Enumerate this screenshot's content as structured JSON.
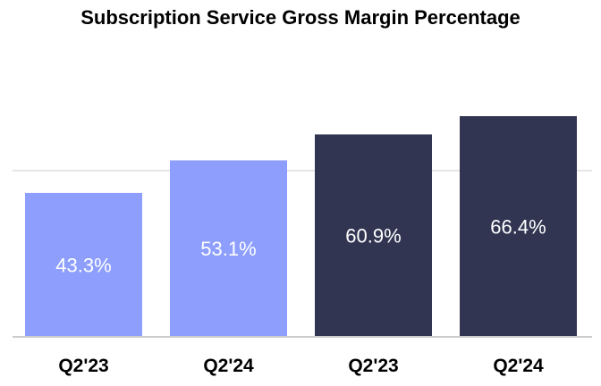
{
  "chart_data": {
    "type": "bar",
    "title": "Subscription Service Gross Margin Percentage",
    "xlabel": "",
    "ylabel": "",
    "categories": [
      "Q2'23",
      "Q2'24",
      "Q2'23",
      "Q2'24"
    ],
    "values": [
      43.3,
      53.1,
      60.9,
      66.4
    ],
    "value_labels": [
      "43.3%",
      "53.1%",
      "60.9%",
      "66.4%"
    ],
    "bar_colors": [
      "#8d9efc",
      "#8d9efc",
      "#323552",
      "#323552"
    ],
    "ylim": [
      0,
      70
    ],
    "grid": true,
    "legend": "none",
    "colors": {
      "gridline": "#e6e6e6",
      "baseline": "#cccccc"
    }
  }
}
